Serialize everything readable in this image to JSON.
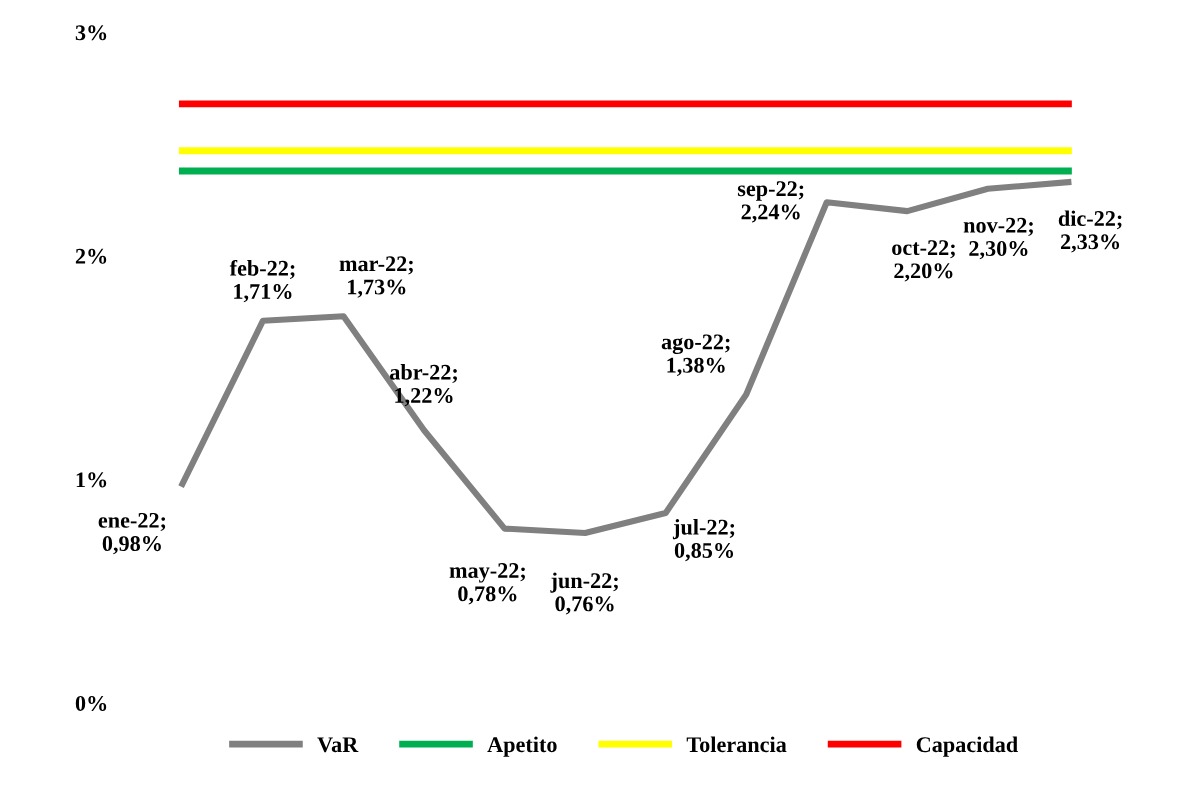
{
  "chart_data": {
    "type": "line",
    "categories": [
      null,
      null,
      null,
      null,
      null,
      null,
      null,
      null,
      null,
      null,
      null,
      null
    ],
    "series": [
      {
        "name": "VaR",
        "color": "#808080",
        "values": [
          0.98,
          1.71,
          1.73,
          1.22,
          0.78,
          0.76,
          0.85,
          1.38,
          2.24,
          2.2,
          2.3,
          2.33
        ],
        "value_labels": [
          "ene-22; 0,98%",
          "feb-22; 1,71%",
          "mar-22; 1,73%",
          "abr-22; 1,22%",
          "may-22; 0,78%",
          "jun-22; 0,76%",
          "jul-22; 0,85%",
          "ago-22; 1,38%",
          "sep-22; 2,24%",
          "oct-22; 2,20%",
          "nov-22; 2,30%",
          "dic-22; 2,33%"
        ]
      },
      {
        "name": "Apetito",
        "color": "#00b050",
        "values": [
          2.38,
          2.38,
          2.38,
          2.38,
          2.38,
          2.38,
          2.38,
          2.38,
          2.38,
          2.38,
          2.38,
          2.38
        ]
      },
      {
        "name": "Tolerancia",
        "color": "#ffff00",
        "values": [
          2.47,
          2.47,
          2.47,
          2.47,
          2.47,
          2.47,
          2.47,
          2.47,
          2.47,
          2.47,
          2.47,
          2.47
        ]
      },
      {
        "name": "Capacidad",
        "color": "#ff0000",
        "values": [
          2.68,
          2.68,
          2.68,
          2.68,
          2.68,
          2.68,
          2.68,
          2.68,
          2.68,
          2.68,
          2.68,
          2.68
        ]
      }
    ],
    "ylim": [
      0,
      3
    ],
    "yticks": [
      {
        "value": 0,
        "label": "0%"
      },
      {
        "value": 1,
        "label": "1%"
      },
      {
        "value": 2,
        "label": "2%"
      },
      {
        "value": 3,
        "label": "3%"
      }
    ],
    "tick_labels": "y",
    "grid": false,
    "legend": "bottom",
    "marker": "none",
    "line_style": "solid"
  }
}
